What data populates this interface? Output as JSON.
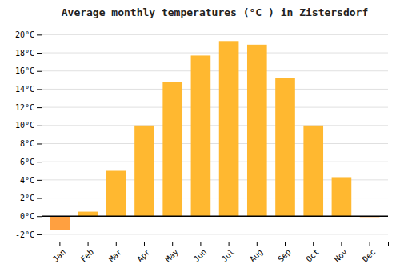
{
  "chart_data": {
    "type": "bar",
    "title": "Average monthly temperatures (°C ) in Zistersdorf",
    "categories": [
      "Jan",
      "Feb",
      "Mar",
      "Apr",
      "May",
      "Jun",
      "Jul",
      "Aug",
      "Sep",
      "Oct",
      "Nov",
      "Dec"
    ],
    "values": [
      -1.5,
      0.5,
      5.0,
      10.0,
      14.8,
      17.7,
      19.3,
      18.9,
      15.2,
      10.0,
      4.3,
      -0.1
    ],
    "colors": [
      "#FFA040",
      "#FFB830",
      "#FFB830",
      "#FFB830",
      "#FFB830",
      "#FFB830",
      "#FFB830",
      "#FFB830",
      "#FFB830",
      "#FFB830",
      "#FFB830",
      "#FFA040"
    ],
    "ylim": [
      -2.8,
      21.0
    ],
    "yticks": [
      {
        "value": -2,
        "label": "-2°C"
      },
      {
        "value": 0,
        "label": "0°C"
      },
      {
        "value": 2,
        "label": "2°C"
      },
      {
        "value": 4,
        "label": "4°C"
      },
      {
        "value": 6,
        "label": "6°C"
      },
      {
        "value": 8,
        "label": "8°C"
      },
      {
        "value": 10,
        "label": "10°C"
      },
      {
        "value": 12,
        "label": "12°C"
      },
      {
        "value": 14,
        "label": "14°C"
      },
      {
        "value": 16,
        "label": "16°C"
      },
      {
        "value": 18,
        "label": "18°C"
      },
      {
        "value": 20,
        "label": "20°C"
      }
    ],
    "grid": true
  }
}
